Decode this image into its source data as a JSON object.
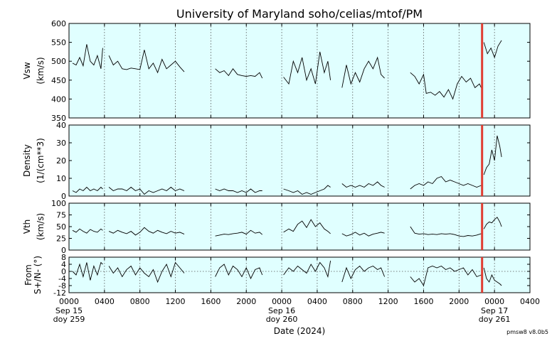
{
  "chart_data": {
    "type": "line",
    "title": "University of Maryland  soho/celias/mtof/PM",
    "xlabel": "Date (2024)",
    "footer": "pmsw8 v8.0b5",
    "colors": {
      "background": "#e0ffff",
      "line": "#000000",
      "marker": "#e03c31",
      "grid": "#555555"
    },
    "x_range_hours": [
      0,
      52
    ],
    "x_tick_labels": [
      "0000",
      "0400",
      "0800",
      "1200",
      "1600",
      "2000",
      "0000",
      "0400",
      "0800",
      "1200",
      "1600",
      "2000",
      "0000",
      "0400"
    ],
    "date_labels": [
      {
        "hour": 0,
        "date": "Sep 15",
        "doy": "doy 259"
      },
      {
        "hour": 24,
        "date": "Sep 16",
        "doy": "doy 260"
      },
      {
        "hour": 48,
        "date": "Sep 17",
        "doy": "doy 261"
      }
    ],
    "marker_hour": 46.6,
    "grid": true,
    "panels": [
      {
        "name": "vsw",
        "ylabel": "Vsw",
        "yunit": "(km/s)",
        "ylim": [
          350,
          600
        ],
        "yticks": [
          350,
          400,
          450,
          500,
          550,
          600
        ],
        "zero_line": false,
        "series": [
          {
            "x": [
              0.4,
              0.8,
              1.2,
              1.6,
              2.0,
              2.4,
              2.8,
              3.2,
              3.6,
              3.8
            ],
            "y": [
              495,
              490,
              510,
              488,
              545,
              500,
              490,
              515,
              480,
              535
            ]
          },
          {
            "x": [
              4.5,
              5.0,
              5.5,
              6.0,
              6.5,
              7.0,
              7.5,
              8.0,
              8.5,
              9.0,
              9.5,
              10.0,
              10.5,
              11.0,
              11.5,
              12.0,
              12.5,
              13.0
            ],
            "y": [
              515,
              490,
              500,
              480,
              478,
              482,
              480,
              478,
              530,
              480,
              495,
              470,
              505,
              480,
              490,
              500,
              485,
              472
            ]
          },
          {
            "x": [
              16.5,
              17.0,
              17.5,
              18.0,
              18.5,
              19.0,
              19.5,
              20.0,
              20.5,
              21.0,
              21.5,
              21.8
            ],
            "y": [
              480,
              470,
              475,
              462,
              480,
              465,
              462,
              460,
              462,
              460,
              470,
              455
            ]
          },
          {
            "x": [
              24.2,
              24.8,
              25.3,
              25.8,
              26.3,
              26.8,
              27.3,
              27.8,
              28.3,
              28.8,
              29.2,
              29.5
            ],
            "y": [
              458,
              440,
              500,
              470,
              510,
              450,
              480,
              440,
              525,
              470,
              500,
              450
            ]
          },
          {
            "x": [
              30.8,
              31.3,
              31.8,
              32.3,
              32.8,
              33.3,
              33.8,
              34.3,
              34.8,
              35.2,
              35.6
            ],
            "y": [
              430,
              490,
              440,
              470,
              445,
              480,
              500,
              480,
              510,
              465,
              455
            ]
          },
          {
            "x": [
              38.5,
              39.0,
              39.5,
              40.0,
              40.3,
              40.8,
              41.3,
              41.8,
              42.3,
              42.8,
              43.3,
              43.8,
              44.3,
              44.8,
              45.3,
              45.8,
              46.3,
              46.5
            ],
            "y": [
              470,
              460,
              440,
              465,
              415,
              418,
              410,
              420,
              405,
              425,
              400,
              440,
              460,
              445,
              455,
              430,
              440,
              430
            ]
          },
          {
            "x": [
              46.8,
              47.2,
              47.6,
              48.0,
              48.4,
              48.8
            ],
            "y": [
              550,
              520,
              535,
              510,
              540,
              555
            ]
          }
        ]
      },
      {
        "name": "density",
        "ylabel": "Density",
        "yunit": "(1/(cm**3)",
        "ylim": [
          0,
          40
        ],
        "yticks": [
          0,
          10,
          20,
          30,
          40
        ],
        "zero_line": false,
        "series": [
          {
            "x": [
              0.4,
              0.8,
              1.2,
              1.6,
              2.0,
              2.4,
              2.8,
              3.2,
              3.6,
              3.8
            ],
            "y": [
              3,
              2,
              4,
              3,
              5,
              3,
              4,
              3,
              5,
              4
            ]
          },
          {
            "x": [
              4.5,
              5.0,
              5.5,
              6.0,
              6.5,
              7.0,
              7.5,
              8.0,
              8.5,
              9.0,
              9.5,
              10.0,
              10.5,
              11.0,
              11.5,
              12.0,
              12.5,
              13.0
            ],
            "y": [
              5,
              3,
              4,
              4,
              3,
              5,
              3,
              4,
              1,
              3,
              2,
              3,
              4,
              3,
              5,
              3,
              4,
              3
            ]
          },
          {
            "x": [
              16.5,
              17.0,
              17.5,
              18.0,
              18.5,
              19.0,
              19.5,
              20.0,
              20.5,
              21.0,
              21.5,
              21.8
            ],
            "y": [
              4,
              3,
              4,
              3,
              3,
              2,
              3,
              2,
              4,
              2,
              3,
              3
            ]
          },
          {
            "x": [
              24.2,
              24.8,
              25.3,
              25.8,
              26.3,
              26.8,
              27.3,
              27.8,
              28.3,
              28.8,
              29.2,
              29.5
            ],
            "y": [
              4,
              3,
              2,
              3,
              1,
              2,
              1,
              2,
              3,
              4,
              6,
              5
            ]
          },
          {
            "x": [
              30.8,
              31.3,
              31.8,
              32.3,
              32.8,
              33.3,
              33.8,
              34.3,
              34.8,
              35.2,
              35.6
            ],
            "y": [
              7,
              5,
              6,
              5,
              6,
              5,
              7,
              6,
              8,
              6,
              5
            ]
          },
          {
            "x": [
              38.5,
              39.0,
              39.5,
              40.0,
              40.5,
              41.0,
              41.5,
              42.0,
              42.5,
              43.0,
              43.5,
              44.0,
              44.5,
              45.0,
              45.5,
              46.0,
              46.5
            ],
            "y": [
              4,
              6,
              7,
              6,
              8,
              7,
              10,
              11,
              8,
              9,
              8,
              7,
              6,
              7,
              6,
              5,
              6
            ]
          },
          {
            "x": [
              46.8,
              47.1,
              47.4,
              47.7,
              48.0,
              48.3,
              48.6,
              48.8
            ],
            "y": [
              12,
              16,
              18,
              26,
              20,
              34,
              28,
              22
            ]
          }
        ]
      },
      {
        "name": "vth",
        "ylabel": "Vth",
        "yunit": "(km/s)",
        "ylim": [
          0,
          100
        ],
        "yticks": [
          0,
          25,
          50,
          75,
          100
        ],
        "zero_line": false,
        "series": [
          {
            "x": [
              0.4,
              0.8,
              1.2,
              1.6,
              2.0,
              2.4,
              2.8,
              3.2,
              3.6,
              3.8
            ],
            "y": [
              42,
              38,
              45,
              40,
              36,
              44,
              40,
              38,
              45,
              42
            ]
          },
          {
            "x": [
              4.5,
              5.0,
              5.5,
              6.0,
              6.5,
              7.0,
              7.5,
              8.0,
              8.5,
              9.0,
              9.5,
              10.0,
              10.5,
              11.0,
              11.5,
              12.0,
              12.5,
              13.0
            ],
            "y": [
              40,
              36,
              42,
              38,
              35,
              40,
              32,
              38,
              48,
              40,
              36,
              42,
              38,
              35,
              40,
              36,
              38,
              34
            ]
          },
          {
            "x": [
              16.5,
              17.0,
              17.5,
              18.0,
              18.5,
              19.0,
              19.5,
              20.0,
              20.5,
              21.0,
              21.5,
              21.8
            ],
            "y": [
              30,
              32,
              34,
              33,
              35,
              36,
              38,
              34,
              42,
              36,
              38,
              33
            ]
          },
          {
            "x": [
              24.2,
              24.8,
              25.3,
              25.8,
              26.3,
              26.8,
              27.3,
              27.8,
              28.3,
              28.8,
              29.2,
              29.5
            ],
            "y": [
              38,
              45,
              40,
              55,
              62,
              48,
              65,
              50,
              58,
              45,
              40,
              35
            ]
          },
          {
            "x": [
              30.8,
              31.3,
              31.8,
              32.3,
              32.8,
              33.3,
              33.8,
              34.3,
              34.8,
              35.2,
              35.6
            ],
            "y": [
              35,
              30,
              33,
              38,
              32,
              36,
              30,
              34,
              36,
              38,
              36
            ]
          },
          {
            "x": [
              38.5,
              39.0,
              39.5,
              40.0,
              40.5,
              41.0,
              41.5,
              42.0,
              42.5,
              43.0,
              43.5,
              44.0,
              44.5,
              45.0,
              45.5,
              46.0,
              46.5
            ],
            "y": [
              50,
              36,
              34,
              35,
              33,
              34,
              33,
              35,
              34,
              35,
              33,
              30,
              29,
              31,
              30,
              32,
              35
            ]
          },
          {
            "x": [
              46.8,
              47.1,
              47.4,
              47.7,
              48.0,
              48.3,
              48.6,
              48.8
            ],
            "y": [
              45,
              55,
              60,
              58,
              65,
              70,
              60,
              50
            ]
          }
        ]
      },
      {
        "name": "from",
        "ylabel": "From",
        "yunit": "S+/N- (°)",
        "ylim": [
          -12,
          8
        ],
        "yticks": [
          -12,
          -8,
          -4,
          0,
          4,
          8
        ],
        "zero_line": true,
        "series": [
          {
            "x": [
              0.4,
              0.8,
              1.2,
              1.6,
              2.0,
              2.4,
              2.8,
              3.2,
              3.6,
              3.8
            ],
            "y": [
              0,
              -2,
              4,
              -3,
              5,
              -5,
              3,
              -2,
              5,
              4
            ]
          },
          {
            "x": [
              4.5,
              5.0,
              5.5,
              6.0,
              6.5,
              7.0,
              7.5,
              8.0,
              8.5,
              9.0,
              9.5,
              10.0,
              10.5,
              11.0,
              11.5,
              12.0,
              12.5,
              13.0
            ],
            "y": [
              3,
              -1,
              2,
              -3,
              1,
              3,
              -2,
              2,
              -1,
              -3,
              1,
              -6,
              0,
              4,
              -3,
              5,
              2,
              -1
            ]
          },
          {
            "x": [
              16.5,
              17.0,
              17.5,
              18.0,
              18.5,
              19.0,
              19.5,
              20.0,
              20.5,
              21.0,
              21.5,
              21.8
            ],
            "y": [
              -3,
              2,
              4,
              -2,
              3,
              1,
              -3,
              2,
              -4,
              1,
              2,
              -2
            ]
          },
          {
            "x": [
              24.2,
              24.8,
              25.3,
              25.8,
              26.3,
              26.8,
              27.3,
              27.8,
              28.3,
              28.8,
              29.2,
              29.5
            ],
            "y": [
              -2,
              2,
              0,
              3,
              1,
              -1,
              4,
              0,
              5,
              2,
              -3,
              6
            ]
          },
          {
            "x": [
              30.8,
              31.3,
              31.8,
              32.3,
              32.8,
              33.3,
              33.8,
              34.3,
              34.8,
              35.2,
              35.6
            ],
            "y": [
              -6,
              2,
              -4,
              1,
              3,
              0,
              2,
              3,
              1,
              2,
              -3
            ]
          },
          {
            "x": [
              38.5,
              39.0,
              39.5,
              40.0,
              40.5,
              41.0,
              41.5,
              42.0,
              42.5,
              43.0,
              43.5,
              44.0,
              44.5,
              45.0,
              45.5,
              46.0,
              46.5
            ],
            "y": [
              -3,
              -6,
              -4,
              -8,
              2,
              3,
              2,
              3,
              1,
              2,
              0,
              1,
              2,
              -2,
              1,
              -3,
              -2
            ]
          },
          {
            "x": [
              46.8,
              47.1,
              47.4,
              47.7,
              48.0,
              48.3,
              48.6,
              48.8
            ],
            "y": [
              2,
              -4,
              -6,
              -2,
              -5,
              -6,
              -7,
              -8
            ]
          }
        ]
      }
    ]
  }
}
